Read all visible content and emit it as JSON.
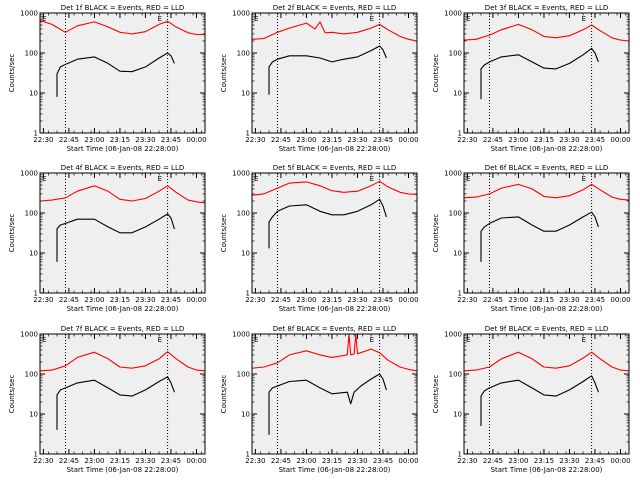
{
  "figure": {
    "x_axis_label": "Start Time (06-Jan-08 22:28:00)",
    "y_axis_label": "Counts/sec",
    "x_tick_labels": [
      "22:30",
      "22:45",
      "23:00",
      "23:15",
      "23:30",
      "23:45",
      "00:00"
    ],
    "y_tick_labels": [
      "1",
      "10",
      "100",
      "1000"
    ],
    "marker_left": "E",
    "marker_right": "E",
    "colors": {
      "events": "#000000",
      "lld": "#ff0000",
      "background": "#efefef"
    }
  },
  "chart_data": [
    {
      "type": "line",
      "title": "Det 1f BLACK = Events, RED = LLD",
      "xlim": [
        "22:28",
        "00:05"
      ],
      "ylim": [
        1,
        1000
      ],
      "yscale": "log",
      "vlines": [
        "22:43",
        "23:43"
      ],
      "series": [
        {
          "color": "#ff0000",
          "x": [
            "22:28",
            "22:35",
            "22:43",
            "22:50",
            "23:00",
            "23:08",
            "23:15",
            "23:22",
            "23:30",
            "23:38",
            "23:43",
            "23:48",
            "23:55",
            "00:00",
            "00:05"
          ],
          "y": [
            650,
            520,
            330,
            480,
            600,
            450,
            330,
            300,
            340,
            520,
            620,
            450,
            320,
            290,
            290
          ]
        },
        {
          "color": "#000000",
          "x": [
            "22:38",
            "22:38",
            "22:40",
            "22:43",
            "22:50",
            "23:00",
            "23:08",
            "23:15",
            "23:22",
            "23:30",
            "23:38",
            "23:43",
            "23:45",
            "23:47"
          ],
          "y": [
            8,
            30,
            45,
            52,
            70,
            80,
            55,
            35,
            34,
            45,
            75,
            100,
            85,
            55
          ]
        }
      ]
    },
    {
      "type": "line",
      "title": "Det 2f BLACK = Events, RED = LLD",
      "xlim": [
        "22:28",
        "00:05"
      ],
      "ylim": [
        1,
        1000
      ],
      "yscale": "log",
      "vlines": [
        "22:43",
        "23:43"
      ],
      "series": [
        {
          "color": "#ff0000",
          "x": [
            "22:28",
            "22:35",
            "22:43",
            "22:50",
            "23:00",
            "23:05",
            "23:08",
            "23:11",
            "23:15",
            "23:22",
            "23:30",
            "23:38",
            "23:43",
            "23:48",
            "23:55",
            "00:00",
            "00:05"
          ],
          "y": [
            220,
            230,
            330,
            420,
            560,
            400,
            600,
            320,
            330,
            300,
            330,
            420,
            520,
            380,
            260,
            220,
            200
          ]
        },
        {
          "color": "#000000",
          "x": [
            "22:38",
            "22:38",
            "22:40",
            "22:43",
            "22:50",
            "23:00",
            "23:08",
            "23:15",
            "23:22",
            "23:30",
            "23:38",
            "23:43",
            "23:45",
            "23:47"
          ],
          "y": [
            9,
            45,
            60,
            70,
            85,
            85,
            75,
            60,
            70,
            80,
            115,
            150,
            120,
            75
          ]
        }
      ]
    },
    {
      "type": "line",
      "title": "Det 3f BLACK = Events, RED = LLD",
      "xlim": [
        "22:28",
        "00:05"
      ],
      "ylim": [
        1,
        1000
      ],
      "yscale": "log",
      "vlines": [
        "22:43",
        "23:43"
      ],
      "series": [
        {
          "color": "#ff0000",
          "x": [
            "22:28",
            "22:35",
            "22:43",
            "22:50",
            "23:00",
            "23:08",
            "23:15",
            "23:22",
            "23:30",
            "23:38",
            "23:43",
            "23:48",
            "23:55",
            "00:00",
            "00:05"
          ],
          "y": [
            210,
            220,
            280,
            380,
            520,
            380,
            260,
            240,
            270,
            380,
            500,
            360,
            240,
            210,
            200
          ]
        },
        {
          "color": "#000000",
          "x": [
            "22:38",
            "22:38",
            "22:40",
            "22:43",
            "22:50",
            "23:00",
            "23:08",
            "23:15",
            "23:22",
            "23:30",
            "23:38",
            "23:43",
            "23:45",
            "23:47"
          ],
          "y": [
            7,
            40,
            50,
            60,
            80,
            90,
            60,
            42,
            40,
            55,
            90,
            130,
            100,
            60
          ]
        }
      ]
    },
    {
      "type": "line",
      "title": "Det 4f BLACK = Events, RED = LLD",
      "xlim": [
        "22:28",
        "00:05"
      ],
      "ylim": [
        1,
        1000
      ],
      "yscale": "log",
      "vlines": [
        "22:43",
        "23:43"
      ],
      "series": [
        {
          "color": "#ff0000",
          "x": [
            "22:28",
            "22:35",
            "22:43",
            "22:50",
            "23:00",
            "23:08",
            "23:15",
            "23:22",
            "23:30",
            "23:38",
            "23:43",
            "23:48",
            "23:55",
            "00:00",
            "00:05"
          ],
          "y": [
            200,
            210,
            240,
            350,
            480,
            350,
            220,
            200,
            230,
            350,
            480,
            330,
            210,
            190,
            180
          ]
        },
        {
          "color": "#000000",
          "x": [
            "22:38",
            "22:38",
            "22:40",
            "22:43",
            "22:50",
            "23:00",
            "23:08",
            "23:15",
            "23:22",
            "23:30",
            "23:38",
            "23:43",
            "23:45",
            "23:47"
          ],
          "y": [
            6,
            40,
            50,
            55,
            70,
            70,
            45,
            32,
            32,
            45,
            70,
            95,
            75,
            40
          ]
        }
      ]
    },
    {
      "type": "line",
      "title": "Det 5f BLACK = Events, RED = LLD",
      "xlim": [
        "22:28",
        "00:05"
      ],
      "ylim": [
        1,
        1000
      ],
      "yscale": "log",
      "vlines": [
        "22:43",
        "23:43"
      ],
      "series": [
        {
          "color": "#ff0000",
          "x": [
            "22:28",
            "22:35",
            "22:43",
            "22:50",
            "23:00",
            "23:08",
            "23:15",
            "23:22",
            "23:30",
            "23:38",
            "23:43",
            "23:48",
            "23:55",
            "00:00",
            "00:05"
          ],
          "y": [
            280,
            300,
            420,
            560,
            600,
            480,
            360,
            330,
            350,
            480,
            620,
            450,
            330,
            300,
            290
          ]
        },
        {
          "color": "#000000",
          "x": [
            "22:38",
            "22:38",
            "22:40",
            "22:43",
            "22:50",
            "23:00",
            "23:08",
            "23:15",
            "23:22",
            "23:30",
            "23:38",
            "23:43",
            "23:45",
            "23:47"
          ],
          "y": [
            13,
            60,
            80,
            110,
            150,
            160,
            110,
            90,
            90,
            110,
            160,
            220,
            150,
            80
          ]
        }
      ]
    },
    {
      "type": "line",
      "title": "Det 6f BLACK = Events, RED = LLD",
      "xlim": [
        "22:28",
        "00:05"
      ],
      "ylim": [
        1,
        1000
      ],
      "yscale": "log",
      "vlines": [
        "22:43",
        "23:43"
      ],
      "series": [
        {
          "color": "#ff0000",
          "x": [
            "22:28",
            "22:35",
            "22:43",
            "22:50",
            "23:00",
            "23:08",
            "23:15",
            "23:22",
            "23:30",
            "23:38",
            "23:43",
            "23:48",
            "23:55",
            "00:00",
            "00:05"
          ],
          "y": [
            240,
            250,
            300,
            420,
            520,
            400,
            260,
            240,
            270,
            380,
            520,
            380,
            250,
            220,
            210
          ]
        },
        {
          "color": "#000000",
          "x": [
            "22:38",
            "22:38",
            "22:40",
            "22:43",
            "22:50",
            "23:00",
            "23:08",
            "23:15",
            "23:22",
            "23:30",
            "23:38",
            "23:43",
            "23:45",
            "23:47"
          ],
          "y": [
            6,
            35,
            45,
            55,
            75,
            80,
            50,
            35,
            35,
            50,
            80,
            105,
            80,
            45
          ]
        }
      ]
    },
    {
      "type": "line",
      "title": "Det 7f BLACK = Events, RED = LLD",
      "xlim": [
        "22:28",
        "00:05"
      ],
      "ylim": [
        1,
        1000
      ],
      "yscale": "log",
      "vlines": [
        "22:43",
        "23:43"
      ],
      "series": [
        {
          "color": "#ff0000",
          "x": [
            "22:28",
            "22:35",
            "22:43",
            "22:50",
            "23:00",
            "23:08",
            "23:15",
            "23:22",
            "23:30",
            "23:38",
            "23:43",
            "23:48",
            "23:55",
            "00:00",
            "00:05"
          ],
          "y": [
            120,
            125,
            160,
            260,
            350,
            240,
            150,
            140,
            160,
            240,
            360,
            240,
            150,
            125,
            120
          ]
        },
        {
          "color": "#000000",
          "x": [
            "22:38",
            "22:38",
            "22:40",
            "22:43",
            "22:50",
            "23:00",
            "23:08",
            "23:15",
            "23:22",
            "23:30",
            "23:38",
            "23:43",
            "23:45",
            "23:47"
          ],
          "y": [
            4,
            30,
            40,
            45,
            60,
            70,
            45,
            30,
            28,
            40,
            65,
            85,
            60,
            35
          ]
        }
      ]
    },
    {
      "type": "line",
      "title": "Det 8f BLACK = Events, RED = LLD",
      "xlim": [
        "22:28",
        "00:05"
      ],
      "ylim": [
        1,
        1000
      ],
      "yscale": "log",
      "vlines": [
        "22:43",
        "23:43"
      ],
      "series": [
        {
          "color": "#ff0000",
          "x": [
            "22:28",
            "22:35",
            "22:43",
            "22:50",
            "23:00",
            "23:08",
            "23:15",
            "23:24",
            "23:25",
            "23:26",
            "23:28",
            "23:29",
            "23:30",
            "23:38",
            "23:43",
            "23:48",
            "23:55",
            "00:00",
            "00:05"
          ],
          "y": [
            140,
            150,
            190,
            300,
            380,
            300,
            260,
            300,
            1000,
            300,
            320,
            1000,
            320,
            420,
            340,
            220,
            150,
            130,
            120
          ]
        },
        {
          "color": "#000000",
          "x": [
            "22:38",
            "22:38",
            "22:40",
            "22:43",
            "22:50",
            "23:00",
            "23:08",
            "23:15",
            "23:24",
            "23:26",
            "23:28",
            "23:32",
            "23:38",
            "23:43",
            "23:45",
            "23:47"
          ],
          "y": [
            3,
            35,
            45,
            50,
            65,
            70,
            45,
            32,
            35,
            18,
            35,
            50,
            75,
            100,
            75,
            40
          ]
        }
      ]
    },
    {
      "type": "line",
      "title": "Det 9f BLACK = Events, RED = LLD",
      "xlim": [
        "22:28",
        "00:05"
      ],
      "ylim": [
        1,
        1000
      ],
      "yscale": "log",
      "vlines": [
        "22:43",
        "23:43"
      ],
      "series": [
        {
          "color": "#ff0000",
          "x": [
            "22:28",
            "22:35",
            "22:43",
            "22:50",
            "23:00",
            "23:08",
            "23:15",
            "23:22",
            "23:30",
            "23:38",
            "23:43",
            "23:48",
            "23:55",
            "00:00",
            "00:05"
          ],
          "y": [
            120,
            125,
            150,
            240,
            350,
            240,
            150,
            140,
            160,
            250,
            350,
            240,
            150,
            125,
            120
          ]
        },
        {
          "color": "#000000",
          "x": [
            "22:38",
            "22:38",
            "22:40",
            "22:43",
            "22:50",
            "23:00",
            "23:08",
            "23:15",
            "23:22",
            "23:30",
            "23:38",
            "23:43",
            "23:45",
            "23:47"
          ],
          "y": [
            5,
            28,
            38,
            45,
            60,
            70,
            45,
            30,
            28,
            40,
            65,
            90,
            60,
            35
          ]
        }
      ]
    }
  ]
}
